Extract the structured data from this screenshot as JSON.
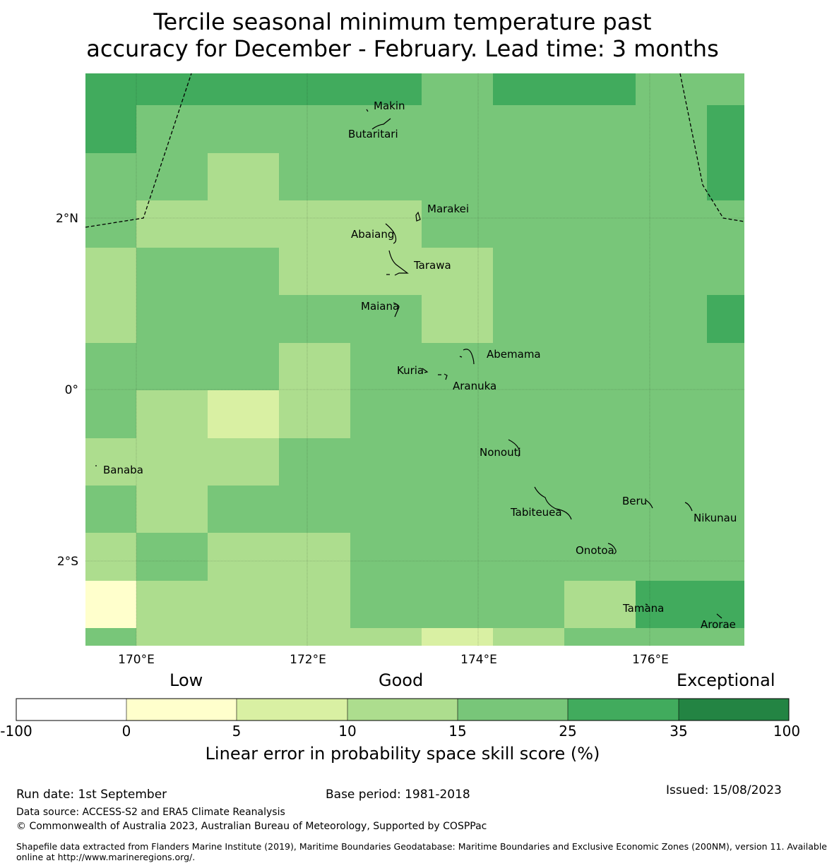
{
  "title_line1": "Tercile seasonal minimum temperature past",
  "title_line2": "accuracy for December - February. Lead time: 3 months",
  "map": {
    "lat_labels": [
      "2°N",
      "0°",
      "2°S"
    ],
    "lon_labels": [
      "170°E",
      "172°E",
      "174°E",
      "176°E"
    ],
    "place_names": [
      "Makin",
      "Butaritari",
      "Marakei",
      "Abaiang",
      "Tarawa",
      "Maiana",
      "Abemama",
      "Kuria",
      "Aranuka",
      "Banaba",
      "Nonouti",
      "Beru",
      "Tabiteuea",
      "Nikunau",
      "Onotoa",
      "Tamana",
      "Arorae"
    ],
    "colors": [
      "#ffffff",
      "#ffffcc",
      "#d9f0a3",
      "#addd8e",
      "#78c679",
      "#41ab5d",
      "#238443"
    ]
  },
  "colorbar": {
    "categories": [
      "Low",
      "Good",
      "Exceptional"
    ],
    "ticks": [
      "-100",
      "0",
      "5",
      "10",
      "15",
      "25",
      "35",
      "100"
    ],
    "label": "Linear error in probability space skill score (%)"
  },
  "footer": {
    "run_date": "Run date: 1st September",
    "base_period": "Base period: 1981-2018",
    "issued": "Issued: 15/08/2023",
    "data_source": "Data source: ACCESS-S2 and ERA5 Climate Reanalysis",
    "copyright": "© Commonwealth of Australia 2023, Australian Bureau of Meteorology, Supported by COSPPac",
    "shapefile_line1": "Shapefile data extracted from Flanders Marine Institute (2019), Maritime Boundaries Geodatabase: Maritime Boundaries and Exclusive Economic Zones (200NM), version 11. Available",
    "shapefile_line2": "online at http://www.marineregions.org/."
  }
}
